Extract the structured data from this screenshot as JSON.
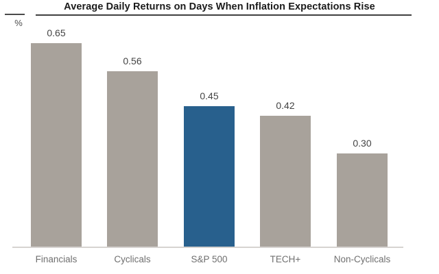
{
  "chart": {
    "colors": {
      "bar_default": "#a8a29b",
      "bar_highlight": "#28608d",
      "axis_line": "#d6d3d0",
      "value_text": "#434343",
      "category_text": "#6f6f6f",
      "title_text": "#1a1a1a",
      "title_underline": "#3f3f3f"
    }
  },
  "chart_data": {
    "type": "bar",
    "title": "Average Daily Returns on Days When Inflation Expectations Rise",
    "ylabel": "%",
    "categories": [
      "Financials",
      "Cyclicals",
      "S&P 500",
      "TECH+",
      "Non-Cyclicals"
    ],
    "values": [
      0.65,
      0.56,
      0.45,
      0.42,
      0.3
    ],
    "value_labels": [
      "0.65",
      "0.56",
      "0.45",
      "0.42",
      "0.30"
    ],
    "highlight_category": "S&P 500",
    "highlight_index": 2,
    "ylim": [
      0,
      0.78
    ],
    "grid": false,
    "legend": false,
    "xlabel": ""
  }
}
